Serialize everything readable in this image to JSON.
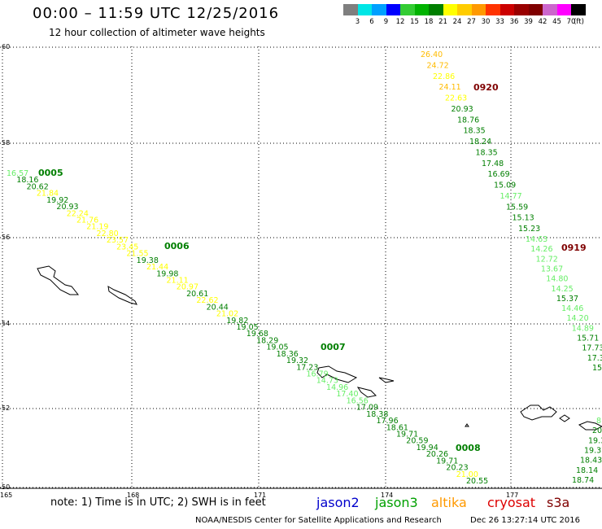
{
  "title": "00:00 – 11:59 UTC 12/25/2016",
  "subtitle": "12 hour collection of altimeter wave heights",
  "legend": {
    "colors": [
      "#7f7f7f",
      "#00e6e6",
      "#00a0ff",
      "#0000ff",
      "#33cc33",
      "#00b300",
      "#007f00",
      "#ffff00",
      "#ffcc00",
      "#ff9900",
      "#ff3300",
      "#cc0000",
      "#990000",
      "#7f0000",
      "#cc66cc",
      "#ff00ff",
      "#000000"
    ],
    "labels": [
      "3",
      "6",
      "9",
      "12",
      "15",
      "18",
      "21",
      "24",
      "27",
      "30",
      "33",
      "36",
      "39",
      "42",
      "45",
      "70",
      "(ft)"
    ]
  },
  "axes": {
    "lat_ticks": [
      "60",
      "58",
      "56",
      "54",
      "52",
      "50"
    ],
    "lon_ticks": [
      "165",
      "168",
      "171",
      "174",
      "177"
    ]
  },
  "colors": {
    "light_green": "#66ee66",
    "green": "#007f00",
    "yellow": "#ffff00",
    "orange": "#ffbb00",
    "dark_red": "#7f0000"
  },
  "pass_labels": [
    {
      "text": "0005",
      "color": "green"
    },
    {
      "text": "0006",
      "color": "green"
    },
    {
      "text": "0007",
      "color": "green"
    },
    {
      "text": "0008",
      "color": "green"
    },
    {
      "text": "0920",
      "color": "dark_red"
    },
    {
      "text": "0919",
      "color": "dark_red"
    }
  ],
  "track1": [
    {
      "v": "16.57",
      "c": "light_green"
    },
    {
      "v": "18.16",
      "c": "green"
    },
    {
      "v": "20.62",
      "c": "green"
    },
    {
      "v": "21.84",
      "c": "yellow"
    },
    {
      "v": "19.92",
      "c": "green"
    },
    {
      "v": "20.93",
      "c": "green"
    },
    {
      "v": "22.24",
      "c": "yellow"
    },
    {
      "v": "21.76",
      "c": "yellow"
    },
    {
      "v": "21.19",
      "c": "yellow"
    },
    {
      "v": "22.80",
      "c": "yellow"
    },
    {
      "v": "23.57",
      "c": "yellow"
    },
    {
      "v": "23.45",
      "c": "yellow"
    },
    {
      "v": "21.55",
      "c": "yellow"
    },
    {
      "v": "19.38",
      "c": "green"
    },
    {
      "v": "21.44",
      "c": "yellow"
    },
    {
      "v": "19.98",
      "c": "green"
    },
    {
      "v": "21.11",
      "c": "yellow"
    },
    {
      "v": "20.97",
      "c": "yellow"
    },
    {
      "v": "20.61",
      "c": "green"
    },
    {
      "v": "22.62",
      "c": "yellow"
    },
    {
      "v": "20.44",
      "c": "green"
    },
    {
      "v": "21.02",
      "c": "yellow"
    },
    {
      "v": "19.82",
      "c": "green"
    },
    {
      "v": "19.05",
      "c": "green"
    },
    {
      "v": "19.68",
      "c": "green"
    },
    {
      "v": "18.29",
      "c": "green"
    },
    {
      "v": "19.05",
      "c": "green"
    },
    {
      "v": "18.36",
      "c": "green"
    },
    {
      "v": "19.32",
      "c": "green"
    },
    {
      "v": "17.23",
      "c": "green"
    },
    {
      "v": "16.79",
      "c": "light_green"
    },
    {
      "v": "14.73",
      "c": "light_green"
    },
    {
      "v": "14.96",
      "c": "light_green"
    },
    {
      "v": "17.40",
      "c": "light_green"
    },
    {
      "v": "16.56",
      "c": "light_green"
    },
    {
      "v": "17.09",
      "c": "green"
    },
    {
      "v": "18.38",
      "c": "green"
    },
    {
      "v": "17.96",
      "c": "green"
    },
    {
      "v": "18.61",
      "c": "green"
    },
    {
      "v": "19.71",
      "c": "green"
    },
    {
      "v": "20.59",
      "c": "green"
    },
    {
      "v": "19.94",
      "c": "green"
    },
    {
      "v": "20.26",
      "c": "green"
    },
    {
      "v": "19.71",
      "c": "green"
    },
    {
      "v": "20.23",
      "c": "green"
    },
    {
      "v": "21.00",
      "c": "yellow"
    },
    {
      "v": "20.55",
      "c": "green"
    }
  ],
  "track2": [
    {
      "v": "26.40",
      "c": "orange"
    },
    {
      "v": "24.72",
      "c": "orange"
    },
    {
      "v": "22.86",
      "c": "yellow"
    },
    {
      "v": "24.11",
      "c": "orange"
    },
    {
      "v": "22.63",
      "c": "yellow"
    },
    {
      "v": "20.93",
      "c": "green"
    },
    {
      "v": "18.76",
      "c": "green"
    },
    {
      "v": "18.35",
      "c": "green"
    },
    {
      "v": "18.24",
      "c": "green"
    },
    {
      "v": "18.35",
      "c": "green"
    },
    {
      "v": "17.48",
      "c": "green"
    },
    {
      "v": "16.69",
      "c": "green"
    },
    {
      "v": "15.09",
      "c": "green"
    },
    {
      "v": "14.77",
      "c": "light_green"
    },
    {
      "v": "15.59",
      "c": "green"
    },
    {
      "v": "15.13",
      "c": "green"
    },
    {
      "v": "15.23",
      "c": "green"
    }
  ],
  "track3": [
    {
      "v": "14.63",
      "c": "light_green"
    },
    {
      "v": "14.26",
      "c": "light_green"
    },
    {
      "v": "12.72",
      "c": "light_green"
    },
    {
      "v": "13.67",
      "c": "light_green"
    },
    {
      "v": "14.80",
      "c": "light_green"
    },
    {
      "v": "14.25",
      "c": "light_green"
    },
    {
      "v": "15.37",
      "c": "green"
    },
    {
      "v": "14.46",
      "c": "light_green"
    },
    {
      "v": "14.20",
      "c": "light_green"
    },
    {
      "v": "14.89",
      "c": "light_green"
    },
    {
      "v": "15.71",
      "c": "green"
    },
    {
      "v": "17.73",
      "c": "green"
    },
    {
      "v": "17.3",
      "c": "green"
    },
    {
      "v": "15",
      "c": "green"
    }
  ],
  "track4": [
    {
      "v": "8",
      "c": "light_green"
    },
    {
      "v": "20.",
      "c": "green"
    },
    {
      "v": "19.3",
      "c": "green"
    },
    {
      "v": "19.37",
      "c": "green"
    },
    {
      "v": "18.43",
      "c": "green"
    },
    {
      "v": "18.14",
      "c": "green"
    },
    {
      "v": "18.74",
      "c": "green"
    }
  ],
  "footer": {
    "note": "note: 1) Time is in UTC; 2) SWH is in feet",
    "sats": [
      {
        "name": "jason2",
        "color": "#0000cc"
      },
      {
        "name": "jason3",
        "color": "#00a000"
      },
      {
        "name": "altika",
        "color": "#ff9900"
      },
      {
        "name": "cryosat",
        "color": "#dd0000"
      },
      {
        "name": "s3a",
        "color": "#7f0000"
      }
    ],
    "credit": "NOAA/NESDIS Center for Satellite Applications and Research",
    "timestamp": "Dec 26 13:27:14 UTC 2016"
  }
}
